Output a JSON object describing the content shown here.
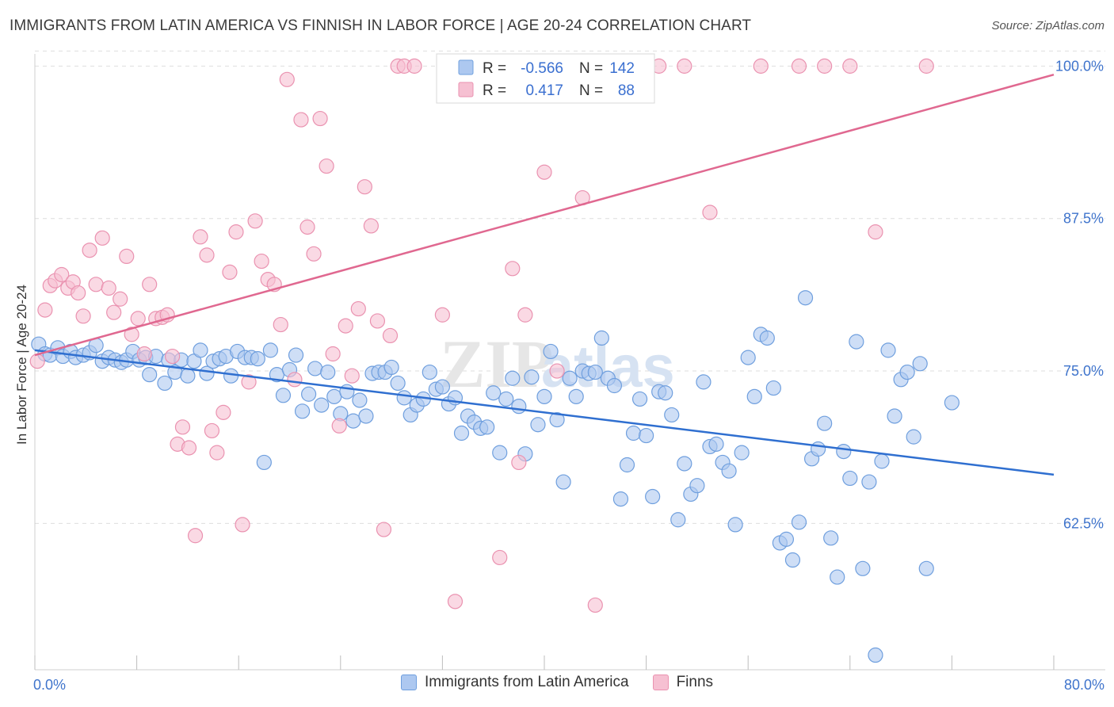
{
  "header": {
    "title": "IMMIGRANTS FROM LATIN AMERICA VS FINNISH IN LABOR FORCE | AGE 20-24 CORRELATION CHART",
    "source": "Source: ZipAtlas.com"
  },
  "watermark": {
    "zip": "ZIP",
    "atlas": "atlas"
  },
  "legend_top": {
    "rows": [
      {
        "r_label": "R =",
        "r_value": "-0.566",
        "n_label": "N =",
        "n_value": "142"
      },
      {
        "r_label": "R =",
        "r_value": "0.417",
        "n_label": "N =",
        "n_value": "88"
      }
    ]
  },
  "colors": {
    "blue_fill": "#adc8f0",
    "blue_stroke": "#6f9fde",
    "blue_line": "#2f6fd0",
    "pink_fill": "#f6c0d2",
    "pink_stroke": "#ea92b0",
    "pink_line": "#e06890",
    "tick_label": "#3f74cc",
    "grid": "#dedede"
  },
  "chart_data": {
    "type": "scatter",
    "title": "IMMIGRANTS FROM LATIN AMERICA VS FINNISH IN LABOR FORCE | AGE 20-24 CORRELATION CHART",
    "xlabel": "",
    "ylabel": "In Labor Force | Age 20-24",
    "xlim": [
      0,
      80
    ],
    "ylim": [
      50.5,
      101
    ],
    "x_tick_labels": [
      "0.0%",
      "80.0%"
    ],
    "y_ticks": [
      62.5,
      75.0,
      87.5,
      100.0
    ],
    "y_tick_labels": [
      "62.5%",
      "75.0%",
      "87.5%",
      "100.0%"
    ],
    "grid": true,
    "legend_position": "top-center",
    "series": [
      {
        "name": "Immigrants from Latin America",
        "color": "#adc8f0",
        "R": -0.566,
        "N": 142,
        "trend": {
          "x": [
            0,
            80
          ],
          "y": [
            76.7,
            66.5
          ]
        },
        "points": [
          [
            0.3,
            77.2
          ],
          [
            0.8,
            76.4
          ],
          [
            1.2,
            76.3
          ],
          [
            1.8,
            76.9
          ],
          [
            2.2,
            76.2
          ],
          [
            2.8,
            76.6
          ],
          [
            3.2,
            76.1
          ],
          [
            3.8,
            76.3
          ],
          [
            4.3,
            76.5
          ],
          [
            4.8,
            77.1
          ],
          [
            5.3,
            75.8
          ],
          [
            5.8,
            76.1
          ],
          [
            6.3,
            75.9
          ],
          [
            6.8,
            75.7
          ],
          [
            7.2,
            75.9
          ],
          [
            7.7,
            76.6
          ],
          [
            8.2,
            75.9
          ],
          [
            8.7,
            76.1
          ],
          [
            9.0,
            74.7
          ],
          [
            9.5,
            76.2
          ],
          [
            10.2,
            74.0
          ],
          [
            10.5,
            75.9
          ],
          [
            11.0,
            74.9
          ],
          [
            11.5,
            75.9
          ],
          [
            12.0,
            74.6
          ],
          [
            12.5,
            75.8
          ],
          [
            13.0,
            76.7
          ],
          [
            13.5,
            74.8
          ],
          [
            14.0,
            75.8
          ],
          [
            14.5,
            76.0
          ],
          [
            15.0,
            76.2
          ],
          [
            15.4,
            74.6
          ],
          [
            15.9,
            76.6
          ],
          [
            16.5,
            76.1
          ],
          [
            17.0,
            76.1
          ],
          [
            17.5,
            76.0
          ],
          [
            18.0,
            67.5
          ],
          [
            18.5,
            76.7
          ],
          [
            19.0,
            74.7
          ],
          [
            19.5,
            73.0
          ],
          [
            20.0,
            75.1
          ],
          [
            20.5,
            76.3
          ],
          [
            21.0,
            71.7
          ],
          [
            21.5,
            73.1
          ],
          [
            22.0,
            75.2
          ],
          [
            22.5,
            72.2
          ],
          [
            23.0,
            74.9
          ],
          [
            23.5,
            72.9
          ],
          [
            24.0,
            71.5
          ],
          [
            24.5,
            73.3
          ],
          [
            25.0,
            70.9
          ],
          [
            25.5,
            72.6
          ],
          [
            26.0,
            71.3
          ],
          [
            26.5,
            74.8
          ],
          [
            27.0,
            74.9
          ],
          [
            27.5,
            74.9
          ],
          [
            28.0,
            75.3
          ],
          [
            28.5,
            74.0
          ],
          [
            29.0,
            72.8
          ],
          [
            29.5,
            71.4
          ],
          [
            30.0,
            72.2
          ],
          [
            30.5,
            72.7
          ],
          [
            31.0,
            74.9
          ],
          [
            31.5,
            73.5
          ],
          [
            32.0,
            73.7
          ],
          [
            32.5,
            72.3
          ],
          [
            33.0,
            72.8
          ],
          [
            33.5,
            69.9
          ],
          [
            34.0,
            71.3
          ],
          [
            34.5,
            70.8
          ],
          [
            35.0,
            70.3
          ],
          [
            35.5,
            70.4
          ],
          [
            36.0,
            73.2
          ],
          [
            36.5,
            68.3
          ],
          [
            37.0,
            72.7
          ],
          [
            37.5,
            74.4
          ],
          [
            38.0,
            72.1
          ],
          [
            38.5,
            68.2
          ],
          [
            39.0,
            74.5
          ],
          [
            39.5,
            70.6
          ],
          [
            40.0,
            72.9
          ],
          [
            40.5,
            76.6
          ],
          [
            41.0,
            71.0
          ],
          [
            41.5,
            65.9
          ],
          [
            42.0,
            74.4
          ],
          [
            42.5,
            72.9
          ],
          [
            43.0,
            75.0
          ],
          [
            43.5,
            74.8
          ],
          [
            44.0,
            74.9
          ],
          [
            44.5,
            77.7
          ],
          [
            45.0,
            74.4
          ],
          [
            45.5,
            73.8
          ],
          [
            46.0,
            64.5
          ],
          [
            46.5,
            67.3
          ],
          [
            47.0,
            69.9
          ],
          [
            47.5,
            72.7
          ],
          [
            48.0,
            69.7
          ],
          [
            48.5,
            64.7
          ],
          [
            49.0,
            73.3
          ],
          [
            49.5,
            73.2
          ],
          [
            50.0,
            71.4
          ],
          [
            50.5,
            62.8
          ],
          [
            51.0,
            67.4
          ],
          [
            51.5,
            64.9
          ],
          [
            52.0,
            65.6
          ],
          [
            52.5,
            74.1
          ],
          [
            53.0,
            68.8
          ],
          [
            53.5,
            69.0
          ],
          [
            54.0,
            67.5
          ],
          [
            54.5,
            66.8
          ],
          [
            55.0,
            62.4
          ],
          [
            55.5,
            68.3
          ],
          [
            56.0,
            76.1
          ],
          [
            56.5,
            72.9
          ],
          [
            57.0,
            78.0
          ],
          [
            57.5,
            77.7
          ],
          [
            58.0,
            73.6
          ],
          [
            58.5,
            60.9
          ],
          [
            59.0,
            61.2
          ],
          [
            59.5,
            59.5
          ],
          [
            60.0,
            62.6
          ],
          [
            60.5,
            81.0
          ],
          [
            61.0,
            67.8
          ],
          [
            61.5,
            68.6
          ],
          [
            62.0,
            70.7
          ],
          [
            62.5,
            61.3
          ],
          [
            63.0,
            58.1
          ],
          [
            63.5,
            68.4
          ],
          [
            64.0,
            66.2
          ],
          [
            64.5,
            77.4
          ],
          [
            65.0,
            58.8
          ],
          [
            65.5,
            65.9
          ],
          [
            66.0,
            51.7
          ],
          [
            66.5,
            67.6
          ],
          [
            67.0,
            76.7
          ],
          [
            67.5,
            71.3
          ],
          [
            68.0,
            74.3
          ],
          [
            68.5,
            74.9
          ],
          [
            69.0,
            69.6
          ],
          [
            69.5,
            75.6
          ],
          [
            70.0,
            58.8
          ],
          [
            72.0,
            72.4
          ]
        ]
      },
      {
        "name": "Finns",
        "color": "#f6c0d2",
        "R": 0.417,
        "N": 88,
        "trend": {
          "x": [
            0,
            80
          ],
          "y": [
            76.3,
            99.3
          ]
        },
        "points": [
          [
            0.2,
            75.8
          ],
          [
            0.8,
            80.0
          ],
          [
            1.2,
            82.0
          ],
          [
            1.6,
            82.4
          ],
          [
            2.1,
            82.9
          ],
          [
            2.6,
            81.8
          ],
          [
            3.0,
            82.3
          ],
          [
            3.4,
            81.4
          ],
          [
            3.8,
            79.5
          ],
          [
            4.3,
            84.9
          ],
          [
            4.8,
            82.1
          ],
          [
            5.3,
            85.9
          ],
          [
            5.8,
            81.8
          ],
          [
            6.2,
            79.8
          ],
          [
            6.7,
            80.9
          ],
          [
            7.2,
            84.4
          ],
          [
            7.6,
            78.0
          ],
          [
            8.1,
            79.3
          ],
          [
            8.6,
            76.4
          ],
          [
            9.0,
            82.1
          ],
          [
            9.5,
            79.3
          ],
          [
            10.0,
            79.4
          ],
          [
            10.4,
            79.6
          ],
          [
            10.8,
            76.2
          ],
          [
            11.2,
            69.0
          ],
          [
            11.6,
            70.4
          ],
          [
            12.1,
            68.7
          ],
          [
            12.6,
            61.5
          ],
          [
            13.0,
            86.0
          ],
          [
            13.5,
            84.5
          ],
          [
            13.9,
            70.1
          ],
          [
            14.3,
            68.3
          ],
          [
            14.8,
            71.6
          ],
          [
            15.3,
            83.1
          ],
          [
            15.8,
            86.4
          ],
          [
            16.3,
            62.4
          ],
          [
            16.8,
            74.1
          ],
          [
            17.3,
            87.3
          ],
          [
            17.8,
            84.0
          ],
          [
            18.3,
            82.5
          ],
          [
            18.8,
            82.1
          ],
          [
            19.3,
            78.8
          ],
          [
            19.8,
            98.9
          ],
          [
            20.4,
            74.3
          ],
          [
            20.9,
            95.6
          ],
          [
            21.4,
            86.8
          ],
          [
            21.9,
            84.6
          ],
          [
            22.4,
            95.7
          ],
          [
            22.9,
            91.8
          ],
          [
            23.4,
            76.4
          ],
          [
            23.9,
            70.5
          ],
          [
            24.4,
            78.7
          ],
          [
            24.9,
            74.6
          ],
          [
            25.4,
            80.1
          ],
          [
            25.9,
            90.1
          ],
          [
            26.4,
            86.9
          ],
          [
            26.9,
            79.1
          ],
          [
            27.4,
            62.0
          ],
          [
            27.9,
            77.9
          ],
          [
            28.5,
            100.0
          ],
          [
            29.0,
            100.0
          ],
          [
            29.8,
            100.0
          ],
          [
            32.0,
            79.6
          ],
          [
            33.0,
            56.1
          ],
          [
            34.0,
            100.0
          ],
          [
            35.0,
            100.0
          ],
          [
            36.0,
            100.0
          ],
          [
            36.5,
            59.7
          ],
          [
            37.5,
            83.4
          ],
          [
            38.0,
            67.5
          ],
          [
            38.5,
            79.6
          ],
          [
            40.0,
            91.3
          ],
          [
            41.0,
            75.0
          ],
          [
            42.0,
            100.0
          ],
          [
            43.0,
            89.2
          ],
          [
            44.0,
            55.8
          ],
          [
            45.0,
            100.0
          ],
          [
            47.0,
            100.0
          ],
          [
            49.0,
            100.0
          ],
          [
            51.0,
            100.0
          ],
          [
            53.0,
            88.0
          ],
          [
            57.0,
            100.0
          ],
          [
            60.0,
            100.0
          ],
          [
            64.0,
            100.0
          ],
          [
            66.0,
            86.4
          ],
          [
            70.0,
            100.0
          ],
          [
            48.0,
            100.0
          ],
          [
            62.0,
            100.0
          ]
        ]
      }
    ]
  }
}
